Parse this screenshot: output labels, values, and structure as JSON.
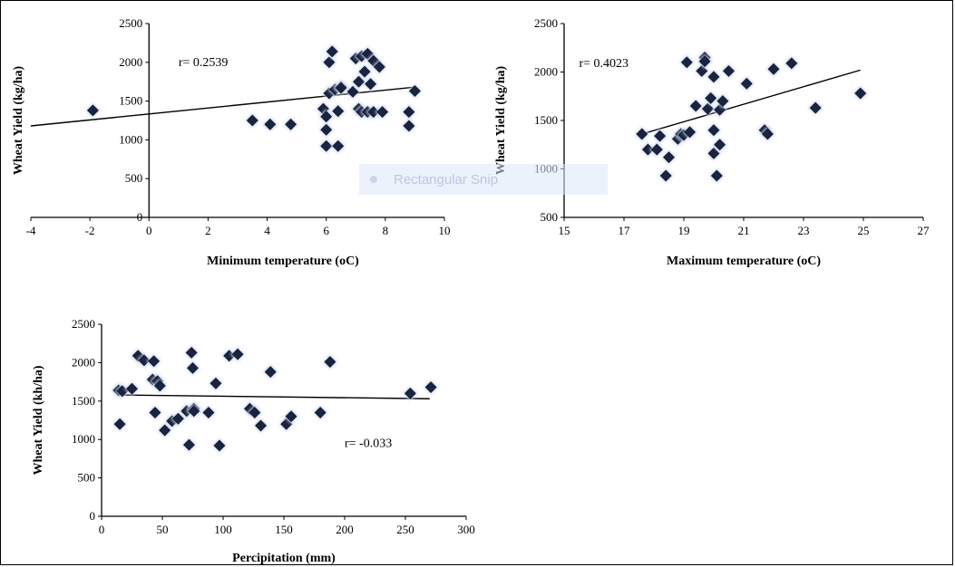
{
  "overlay": {
    "label": "Rectangular Snip",
    "icon": "dot-icon"
  },
  "colors": {
    "marker": "#1a2440",
    "marker_glow": "#c7d3ea",
    "axis": "#000000",
    "trend": "#000000"
  },
  "chart_data": [
    {
      "type": "scatter",
      "title": "",
      "xlabel": "Minimum temperature (oC)",
      "ylabel": "Wheat Yield (kg/ha)",
      "xlim": [
        -4,
        10
      ],
      "ylim": [
        0,
        2500
      ],
      "xticks": [
        -4,
        -2,
        0,
        2,
        4,
        6,
        8,
        10
      ],
      "yticks": [
        0,
        500,
        1000,
        1500,
        2000,
        2500
      ],
      "grid": false,
      "annotation": "r= 0.2539",
      "annotation_at": [
        1,
        1950
      ],
      "trendline": [
        [
          -4,
          1180
        ],
        [
          9,
          1680
        ]
      ],
      "x": [
        -1.9,
        3.5,
        4.1,
        4.8,
        5.9,
        6.0,
        6.0,
        6.0,
        6.1,
        6.1,
        6.2,
        6.3,
        6.4,
        6.4,
        6.5,
        6.5,
        6.9,
        7.0,
        7.1,
        7.1,
        7.2,
        7.2,
        7.3,
        7.4,
        7.4,
        7.5,
        7.6,
        7.6,
        7.8,
        7.9,
        8.8,
        8.8,
        9.0
      ],
      "y": [
        1380,
        1250,
        1200,
        1200,
        1400,
        920,
        1130,
        1300,
        2000,
        1600,
        2140,
        1650,
        920,
        1370,
        1680,
        1670,
        1620,
        2050,
        1400,
        1750,
        2080,
        1360,
        1880,
        1360,
        2110,
        1720,
        2020,
        1360,
        1940,
        1360,
        1360,
        1180,
        1630
      ]
    },
    {
      "type": "scatter",
      "title": "",
      "xlabel": "Maximum temperature (oC)",
      "ylabel": "Wheat Yield (kg/ha)",
      "xlim": [
        15,
        27
      ],
      "ylim": [
        500,
        2500
      ],
      "xticks": [
        15,
        17,
        19,
        21,
        23,
        25,
        27
      ],
      "yticks": [
        500,
        1000,
        1500,
        2000,
        2500
      ],
      "grid": false,
      "annotation": "r= 0.4023",
      "annotation_at": [
        15.5,
        2050
      ],
      "trendline": [
        [
          17.6,
          1360
        ],
        [
          24.9,
          2020
        ]
      ],
      "x": [
        17.6,
        17.8,
        18.1,
        18.2,
        18.4,
        18.5,
        18.8,
        18.9,
        19.0,
        19.1,
        19.2,
        19.4,
        19.6,
        19.7,
        19.7,
        19.8,
        19.9,
        20.0,
        20.0,
        20.0,
        20.1,
        20.2,
        20.2,
        20.3,
        20.5,
        21.1,
        21.7,
        21.8,
        22.0,
        22.6,
        23.4,
        24.9
      ],
      "y": [
        1360,
        1200,
        1200,
        1340,
        930,
        1120,
        1310,
        1360,
        1350,
        2100,
        1380,
        1650,
        2010,
        2150,
        2110,
        1620,
        1730,
        1400,
        1160,
        1950,
        930,
        1610,
        1250,
        1700,
        2010,
        1880,
        1400,
        1360,
        2030,
        2090,
        1630,
        1780
      ]
    },
    {
      "type": "scatter",
      "title": "",
      "xlabel": "Percipitation (mm)",
      "ylabel": "Wheat Yield (kh/ha)",
      "xlim": [
        0,
        300
      ],
      "ylim": [
        0,
        2500
      ],
      "xticks": [
        0,
        50,
        100,
        150,
        200,
        250,
        300
      ],
      "yticks": [
        0,
        500,
        1000,
        1500,
        2000,
        2500
      ],
      "grid": false,
      "annotation": "r= -0.033",
      "annotation_at": [
        200,
        900
      ],
      "trendline": [
        [
          15,
          1580
        ],
        [
          270,
          1530
        ]
      ],
      "x": [
        14,
        15,
        17,
        25,
        30,
        35,
        42,
        43,
        44,
        46,
        48,
        52,
        58,
        63,
        70,
        72,
        74,
        75,
        76,
        76,
        88,
        94,
        97,
        105,
        112,
        122,
        126,
        131,
        139,
        152,
        156,
        180,
        188,
        254,
        271
      ],
      "y": [
        1640,
        1200,
        1630,
        1660,
        2090,
        2030,
        1780,
        2020,
        1350,
        1760,
        1700,
        1120,
        1240,
        1270,
        1370,
        930,
        2130,
        1930,
        1400,
        1370,
        1350,
        1730,
        920,
        2090,
        2110,
        1400,
        1350,
        1180,
        1880,
        1200,
        1300,
        1350,
        2010,
        1600,
        1680
      ]
    }
  ]
}
